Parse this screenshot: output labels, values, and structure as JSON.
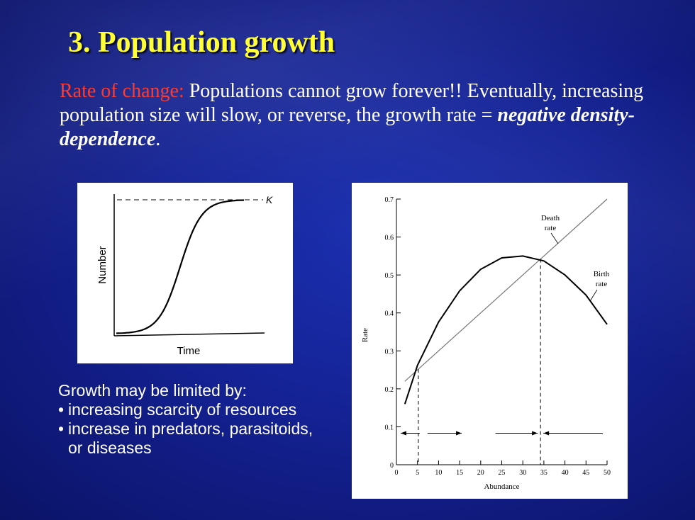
{
  "slide": {
    "title": "3. Population growth",
    "intro_lead": "Rate of change:",
    "intro_text": " Populations cannot grow forever!!  Eventually, increasing population size will slow, or reverse, the growth rate = ",
    "intro_em": "negative density-dependence",
    "intro_end": "."
  },
  "limits": {
    "heading": "Growth may be limited by:",
    "items": [
      "increasing scarcity of resources",
      "increase in predators, parasitoids, or diseases"
    ]
  },
  "chart_data": [
    {
      "type": "line",
      "xlabel": "Time",
      "ylabel": "Number",
      "asymptote_label": "K",
      "curve": "logistic",
      "axis_ticks": false
    },
    {
      "type": "line",
      "xlabel": "Abundance",
      "ylabel": "Rate",
      "xlim": [
        0,
        50
      ],
      "ylim": [
        0,
        0.7
      ],
      "xticks": [
        0,
        5,
        10,
        15,
        20,
        25,
        30,
        35,
        40,
        45,
        50
      ],
      "yticks": [
        0,
        0.1,
        0.2,
        0.3,
        0.4,
        0.5,
        0.6,
        0.7
      ],
      "series": [
        {
          "name": "Death rate",
          "label_lines": [
            "Death",
            "rate"
          ],
          "x": [
            2,
            50
          ],
          "y": [
            0.22,
            0.7
          ]
        },
        {
          "name": "Birth rate",
          "label_lines": [
            "Birth",
            "rate"
          ],
          "x": [
            2,
            5,
            10,
            15,
            20,
            25,
            30,
            35,
            40,
            45,
            50
          ],
          "y": [
            0.16,
            0.262,
            0.376,
            0.458,
            0.515,
            0.545,
            0.55,
            0.537,
            0.5,
            0.447,
            0.37
          ]
        }
      ],
      "equilibria_x": [
        5.2,
        34.2
      ],
      "arrow_y": 0.083
    }
  ]
}
